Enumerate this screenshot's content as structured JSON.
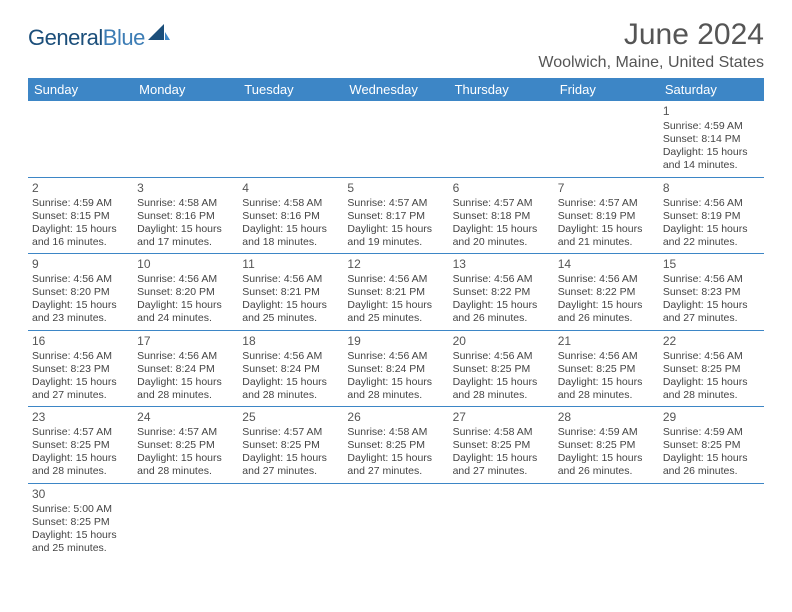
{
  "logo": {
    "text_a": "General",
    "text_b": "Blue",
    "shape_color": "#1b4e7a"
  },
  "title": "June 2024",
  "location": "Woolwich, Maine, United States",
  "colors": {
    "header_bg": "#3d86c6",
    "header_text": "#ffffff",
    "cell_border": "#3d86c6",
    "text": "#444444",
    "title_text": "#555555"
  },
  "weekdays": [
    "Sunday",
    "Monday",
    "Tuesday",
    "Wednesday",
    "Thursday",
    "Friday",
    "Saturday"
  ],
  "weeks": [
    [
      null,
      null,
      null,
      null,
      null,
      null,
      {
        "n": "1",
        "sunrise": "Sunrise: 4:59 AM",
        "sunset": "Sunset: 8:14 PM",
        "day": "Daylight: 15 hours and 14 minutes."
      }
    ],
    [
      {
        "n": "2",
        "sunrise": "Sunrise: 4:59 AM",
        "sunset": "Sunset: 8:15 PM",
        "day": "Daylight: 15 hours and 16 minutes."
      },
      {
        "n": "3",
        "sunrise": "Sunrise: 4:58 AM",
        "sunset": "Sunset: 8:16 PM",
        "day": "Daylight: 15 hours and 17 minutes."
      },
      {
        "n": "4",
        "sunrise": "Sunrise: 4:58 AM",
        "sunset": "Sunset: 8:16 PM",
        "day": "Daylight: 15 hours and 18 minutes."
      },
      {
        "n": "5",
        "sunrise": "Sunrise: 4:57 AM",
        "sunset": "Sunset: 8:17 PM",
        "day": "Daylight: 15 hours and 19 minutes."
      },
      {
        "n": "6",
        "sunrise": "Sunrise: 4:57 AM",
        "sunset": "Sunset: 8:18 PM",
        "day": "Daylight: 15 hours and 20 minutes."
      },
      {
        "n": "7",
        "sunrise": "Sunrise: 4:57 AM",
        "sunset": "Sunset: 8:19 PM",
        "day": "Daylight: 15 hours and 21 minutes."
      },
      {
        "n": "8",
        "sunrise": "Sunrise: 4:56 AM",
        "sunset": "Sunset: 8:19 PM",
        "day": "Daylight: 15 hours and 22 minutes."
      }
    ],
    [
      {
        "n": "9",
        "sunrise": "Sunrise: 4:56 AM",
        "sunset": "Sunset: 8:20 PM",
        "day": "Daylight: 15 hours and 23 minutes."
      },
      {
        "n": "10",
        "sunrise": "Sunrise: 4:56 AM",
        "sunset": "Sunset: 8:20 PM",
        "day": "Daylight: 15 hours and 24 minutes."
      },
      {
        "n": "11",
        "sunrise": "Sunrise: 4:56 AM",
        "sunset": "Sunset: 8:21 PM",
        "day": "Daylight: 15 hours and 25 minutes."
      },
      {
        "n": "12",
        "sunrise": "Sunrise: 4:56 AM",
        "sunset": "Sunset: 8:21 PM",
        "day": "Daylight: 15 hours and 25 minutes."
      },
      {
        "n": "13",
        "sunrise": "Sunrise: 4:56 AM",
        "sunset": "Sunset: 8:22 PM",
        "day": "Daylight: 15 hours and 26 minutes."
      },
      {
        "n": "14",
        "sunrise": "Sunrise: 4:56 AM",
        "sunset": "Sunset: 8:22 PM",
        "day": "Daylight: 15 hours and 26 minutes."
      },
      {
        "n": "15",
        "sunrise": "Sunrise: 4:56 AM",
        "sunset": "Sunset: 8:23 PM",
        "day": "Daylight: 15 hours and 27 minutes."
      }
    ],
    [
      {
        "n": "16",
        "sunrise": "Sunrise: 4:56 AM",
        "sunset": "Sunset: 8:23 PM",
        "day": "Daylight: 15 hours and 27 minutes."
      },
      {
        "n": "17",
        "sunrise": "Sunrise: 4:56 AM",
        "sunset": "Sunset: 8:24 PM",
        "day": "Daylight: 15 hours and 28 minutes."
      },
      {
        "n": "18",
        "sunrise": "Sunrise: 4:56 AM",
        "sunset": "Sunset: 8:24 PM",
        "day": "Daylight: 15 hours and 28 minutes."
      },
      {
        "n": "19",
        "sunrise": "Sunrise: 4:56 AM",
        "sunset": "Sunset: 8:24 PM",
        "day": "Daylight: 15 hours and 28 minutes."
      },
      {
        "n": "20",
        "sunrise": "Sunrise: 4:56 AM",
        "sunset": "Sunset: 8:25 PM",
        "day": "Daylight: 15 hours and 28 minutes."
      },
      {
        "n": "21",
        "sunrise": "Sunrise: 4:56 AM",
        "sunset": "Sunset: 8:25 PM",
        "day": "Daylight: 15 hours and 28 minutes."
      },
      {
        "n": "22",
        "sunrise": "Sunrise: 4:56 AM",
        "sunset": "Sunset: 8:25 PM",
        "day": "Daylight: 15 hours and 28 minutes."
      }
    ],
    [
      {
        "n": "23",
        "sunrise": "Sunrise: 4:57 AM",
        "sunset": "Sunset: 8:25 PM",
        "day": "Daylight: 15 hours and 28 minutes."
      },
      {
        "n": "24",
        "sunrise": "Sunrise: 4:57 AM",
        "sunset": "Sunset: 8:25 PM",
        "day": "Daylight: 15 hours and 28 minutes."
      },
      {
        "n": "25",
        "sunrise": "Sunrise: 4:57 AM",
        "sunset": "Sunset: 8:25 PM",
        "day": "Daylight: 15 hours and 27 minutes."
      },
      {
        "n": "26",
        "sunrise": "Sunrise: 4:58 AM",
        "sunset": "Sunset: 8:25 PM",
        "day": "Daylight: 15 hours and 27 minutes."
      },
      {
        "n": "27",
        "sunrise": "Sunrise: 4:58 AM",
        "sunset": "Sunset: 8:25 PM",
        "day": "Daylight: 15 hours and 27 minutes."
      },
      {
        "n": "28",
        "sunrise": "Sunrise: 4:59 AM",
        "sunset": "Sunset: 8:25 PM",
        "day": "Daylight: 15 hours and 26 minutes."
      },
      {
        "n": "29",
        "sunrise": "Sunrise: 4:59 AM",
        "sunset": "Sunset: 8:25 PM",
        "day": "Daylight: 15 hours and 26 minutes."
      }
    ],
    [
      {
        "n": "30",
        "sunrise": "Sunrise: 5:00 AM",
        "sunset": "Sunset: 8:25 PM",
        "day": "Daylight: 15 hours and 25 minutes."
      },
      null,
      null,
      null,
      null,
      null,
      null
    ]
  ]
}
